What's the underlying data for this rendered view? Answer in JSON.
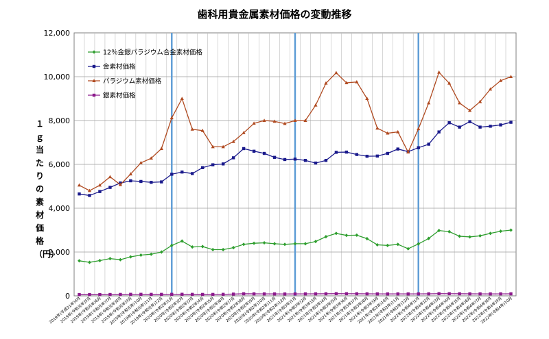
{
  "chart_data": {
    "type": "line",
    "title": "歯科用貴金属素材価格の変動推移",
    "ylabel": "１ｇ当たりの素材価格（円）",
    "ylim": [
      0,
      12000
    ],
    "yticks": [
      "0",
      "2,000",
      "4,000",
      "6,000",
      "8,000",
      "10,000",
      "12,000"
    ],
    "grid": true,
    "legend_position": "top-left",
    "categories": [
      "2019年(平成31年)4月",
      "2019年(令和元年)5月",
      "2019年(令和元年)6月",
      "2019年(令和元年)7月",
      "2019年(令和元年)8月",
      "2019年(令和元年)9月",
      "2019年(令和元年)10月",
      "2019年(令和元年)11月",
      "2019年(令和元年)12月",
      "2020年(令和2年)1月",
      "2020年(令和2年)2月",
      "2020年(令和2年)3月",
      "2020年(令和2年)4月",
      "2020年(令和2年)5月",
      "2020年(令和2年)6月",
      "2020年(令和2年)7月",
      "2020年(令和2年)8月",
      "2020年(令和2年)9月",
      "2020年(令和2年)10月",
      "2020年(令和2年)11月",
      "2020年(令和2年)12月",
      "2021年(令和3年)1月",
      "2021年(令和3年)2月",
      "2021年(令和3年)3月",
      "2021年(令和3年)4月",
      "2021年(令和3年)5月",
      "2021年(令和3年)6月",
      "2021年(令和3年)7月",
      "2021年(令和3年)8月",
      "2021年(令和3年)9月",
      "2021年(令和3年)10月",
      "2021年(令和3年)11月",
      "2021年(令和3年)12月",
      "2022年(令和4年)1月",
      "2022年(令和4年)2月",
      "2022年(令和4年)3月",
      "2022年(令和4年)4月",
      "2022年(令和4年)5月",
      "2022年(令和4年)6月",
      "2022年(令和4年)7月",
      "2022年(令和4年)8月",
      "2022年(令和4年)9月",
      "2022年(令和4年)10月"
    ],
    "year_boundaries": [
      "2020年(令和2年)1月",
      "2021年(令和3年)1月",
      "2022年(令和4年)1月"
    ],
    "series": [
      {
        "name": "12％金銀パラジウム合金素材価格",
        "color": "#2e9e2e",
        "marker": "diamond",
        "values": [
          1600,
          1530,
          1610,
          1700,
          1650,
          1780,
          1860,
          1900,
          2000,
          2300,
          2500,
          2230,
          2250,
          2110,
          2110,
          2200,
          2350,
          2400,
          2420,
          2380,
          2350,
          2380,
          2380,
          2480,
          2700,
          2850,
          2760,
          2770,
          2610,
          2330,
          2300,
          2350,
          2150,
          2370,
          2620,
          2980,
          2930,
          2720,
          2690,
          2740,
          2850,
          2950,
          3000
        ]
      },
      {
        "name": "金素材価格",
        "color": "#1a1a8c",
        "marker": "square",
        "values": [
          4650,
          4580,
          4760,
          4950,
          5150,
          5250,
          5220,
          5180,
          5200,
          5550,
          5650,
          5580,
          5850,
          5980,
          6020,
          6300,
          6720,
          6600,
          6500,
          6320,
          6220,
          6240,
          6180,
          6060,
          6180,
          6550,
          6560,
          6450,
          6370,
          6380,
          6500,
          6700,
          6580,
          6760,
          6920,
          7480,
          7900,
          7700,
          7950,
          7700,
          7740,
          7800,
          7920
        ]
      },
      {
        "name": "パラジウム素材価格",
        "color": "#b04a20",
        "marker": "triangle",
        "values": [
          5050,
          4800,
          5050,
          5430,
          5070,
          5560,
          6070,
          6280,
          6720,
          8120,
          9000,
          7600,
          7540,
          6800,
          6800,
          7040,
          7440,
          7870,
          8000,
          7960,
          7860,
          8000,
          8000,
          8700,
          9700,
          10180,
          9720,
          9760,
          9000,
          7650,
          7420,
          7480,
          6560,
          7620,
          8800,
          10200,
          9700,
          8800,
          8460,
          8860,
          9430,
          9820,
          10000
        ]
      },
      {
        "name": "銀素材価格",
        "color": "#8c1a8c",
        "marker": "square",
        "values": [
          60,
          60,
          60,
          62,
          65,
          70,
          70,
          68,
          68,
          70,
          72,
          68,
          65,
          66,
          70,
          80,
          95,
          92,
          90,
          88,
          86,
          88,
          90,
          92,
          95,
          100,
          98,
          95,
          92,
          90,
          88,
          90,
          88,
          90,
          92,
          100,
          98,
          95,
          92,
          90,
          88,
          90,
          92
        ]
      }
    ]
  }
}
